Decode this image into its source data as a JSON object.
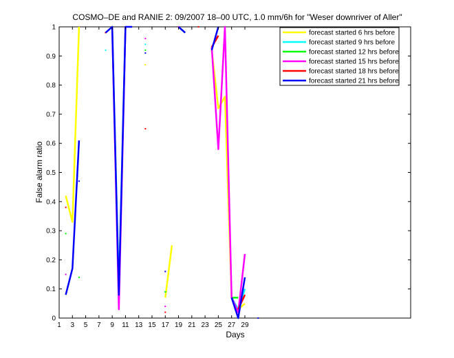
{
  "chart_data": {
    "type": "line",
    "title": "COSMO–DE and RANIE 2: 09/2007 18–00 UTC, 1.0 mm/6h for \"Weser downriver of Aller\"",
    "xlabel": "Days",
    "ylabel": "False alarm ratio",
    "xlim": [
      1,
      54
    ],
    "ylim": [
      0,
      1
    ],
    "x_ticks": [
      1,
      3,
      5,
      7,
      9,
      11,
      13,
      15,
      17,
      19,
      21,
      23,
      25,
      27,
      29
    ],
    "y_ticks": [
      0,
      0.1,
      0.2,
      0.3,
      0.4,
      0.5,
      0.6,
      0.7,
      0.8,
      0.9,
      1
    ],
    "y_tick_labels": [
      "0",
      "0.1",
      "0.2",
      "0.3",
      "0.4",
      "0.5",
      "0.6",
      "0.7",
      "0.8",
      "0.9",
      "1"
    ],
    "grid": false,
    "legend_position": "top-right",
    "series": [
      {
        "name": "forecast started 6 hrs before",
        "color": "#ffff00",
        "segments": [
          [
            [
              2,
              0.42
            ],
            [
              3,
              0.33
            ],
            [
              4,
              1.0
            ]
          ],
          [
            [
              9,
              1.0
            ],
            [
              10,
              0.1
            ],
            [
              11,
              1.0
            ]
          ],
          [
            [
              17,
              0.07
            ],
            [
              18,
              0.25
            ]
          ],
          [
            [
              24,
              0.92
            ],
            [
              25,
              0.72
            ],
            [
              26,
              0.76
            ],
            [
              27,
              0.07
            ],
            [
              28,
              0.03
            ],
            [
              29,
              0.05
            ]
          ]
        ],
        "points": [
          [
            8,
            0.98
          ],
          [
            14,
            0.87
          ]
        ]
      },
      {
        "name": "forecast started 9 hrs before",
        "color": "#00ffff",
        "segments": [
          [
            [
              9,
              1.0
            ],
            [
              10,
              0.1
            ],
            [
              11,
              1.0
            ]
          ],
          [
            [
              27,
              0.07
            ],
            [
              28,
              0.03
            ],
            [
              29,
              0.1
            ]
          ]
        ],
        "points": [
          [
            8,
            0.92
          ],
          [
            14,
            0.94
          ],
          [
            17,
            0.09
          ]
        ]
      },
      {
        "name": "forecast started 12 hrs before",
        "color": "#00ff00",
        "segments": [
          [
            [
              27,
              0.07
            ],
            [
              28,
              0.07
            ]
          ]
        ],
        "points": [
          [
            2,
            0.29
          ],
          [
            4,
            0.14
          ],
          [
            14,
            0.92
          ],
          [
            17,
            0.09
          ]
        ]
      },
      {
        "name": "forecast started 15 hrs before",
        "color": "#ff00ff",
        "segments": [
          [
            [
              9,
              1.0
            ],
            [
              10,
              0.03
            ],
            [
              11,
              1.0
            ]
          ],
          [
            [
              24,
              0.93
            ],
            [
              25,
              0.58
            ],
            [
              26,
              1.0
            ],
            [
              27,
              0.07
            ],
            [
              28,
              0.02
            ],
            [
              29,
              0.22
            ]
          ]
        ],
        "points": [
          [
            2,
            0.15
          ],
          [
            14,
            0.96
          ],
          [
            17,
            0.04
          ],
          [
            19,
            1.0
          ]
        ]
      },
      {
        "name": "forecast started 18 hrs before",
        "color": "#ff0000",
        "segments": [
          [
            [
              24,
              0.93
            ],
            [
              25,
              0.97
            ]
          ],
          [
            [
              28,
              0.03
            ],
            [
              29,
              0.08
            ]
          ]
        ],
        "points": [
          [
            2,
            0.38
          ],
          [
            8,
            0.98
          ],
          [
            14,
            0.65
          ],
          [
            17,
            0.02
          ],
          [
            22,
            1.0
          ]
        ]
      },
      {
        "name": "forecast started 21 hrs before",
        "color": "#0000ff",
        "segments": [
          [
            [
              2,
              0.08
            ],
            [
              3,
              0.17
            ],
            [
              4,
              0.61
            ]
          ],
          [
            [
              8,
              0.98
            ],
            [
              9,
              1.0
            ],
            [
              10,
              0.08
            ],
            [
              11,
              1.0
            ],
            [
              12,
              1.0
            ]
          ],
          [
            [
              19,
              1.0
            ],
            [
              20,
              0.98
            ]
          ],
          [
            [
              24,
              0.92
            ],
            [
              25,
              1.0
            ]
          ],
          [
            [
              27,
              0.07
            ],
            [
              28,
              0.0
            ],
            [
              29,
              0.14
            ]
          ]
        ],
        "points": [
          [
            4,
            0.47
          ],
          [
            14,
            0.91
          ],
          [
            17,
            0.16
          ],
          [
            31,
            0.0
          ]
        ]
      }
    ]
  }
}
